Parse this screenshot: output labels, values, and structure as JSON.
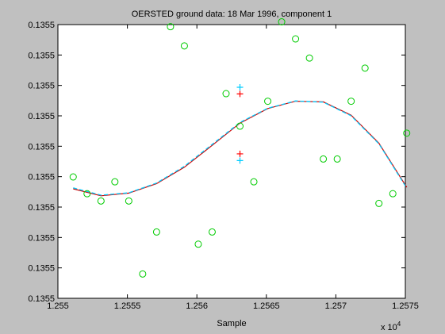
{
  "chart_data": {
    "type": "scatter",
    "title": "OERSTED ground data: 18 Mar 1996, component 1",
    "xlabel": "Sample",
    "ylabel": "",
    "x_multiplier_label": "x 10",
    "x_multiplier_exp": "4",
    "xlim": [
      1.255,
      1.2575
    ],
    "ylim": [
      0,
      9
    ],
    "x_ticks": [
      {
        "v": 1.255,
        "label": "1.255"
      },
      {
        "v": 1.2555,
        "label": "1.2555"
      },
      {
        "v": 1.256,
        "label": "1.256"
      },
      {
        "v": 1.2565,
        "label": "1.2565"
      },
      {
        "v": 1.257,
        "label": "1.257"
      },
      {
        "v": 1.2575,
        "label": "1.2575"
      }
    ],
    "y_ticks": [
      {
        "v": 9,
        "label": "0.1355"
      },
      {
        "v": 8,
        "label": "0.1355"
      },
      {
        "v": 7,
        "label": "0.1355"
      },
      {
        "v": 6,
        "label": "0.1355"
      },
      {
        "v": 5,
        "label": "0.1355"
      },
      {
        "v": 4,
        "label": "0.1355"
      },
      {
        "v": 3,
        "label": "0.1355"
      },
      {
        "v": 2,
        "label": "0.1355"
      },
      {
        "v": 1,
        "label": "0.1355"
      },
      {
        "v": 0,
        "label": "0.1355"
      }
    ],
    "grid": false,
    "series": [
      {
        "marker": "circle",
        "color": "#00cc00",
        "points": [
          [
            1.25511,
            3.99
          ],
          [
            1.25521,
            3.44
          ],
          [
            1.25531,
            3.2
          ],
          [
            1.25541,
            3.83
          ],
          [
            1.25551,
            3.2
          ],
          [
            1.25561,
            0.8
          ],
          [
            1.25571,
            2.18
          ],
          [
            1.25581,
            8.93
          ],
          [
            1.25591,
            8.3
          ],
          [
            1.25601,
            1.78
          ],
          [
            1.25611,
            2.18
          ],
          [
            1.25621,
            6.73
          ],
          [
            1.25631,
            5.66
          ],
          [
            1.25641,
            3.83
          ],
          [
            1.25651,
            6.48
          ],
          [
            1.25661,
            9.09
          ],
          [
            1.25671,
            8.53
          ],
          [
            1.25681,
            7.9
          ],
          [
            1.25691,
            4.58
          ],
          [
            1.25701,
            4.58
          ],
          [
            1.25711,
            6.48
          ],
          [
            1.25721,
            7.57
          ],
          [
            1.25731,
            3.12
          ],
          [
            1.25741,
            3.44
          ],
          [
            1.25751,
            5.43
          ]
        ]
      },
      {
        "marker": "plus",
        "color": "#ff0000",
        "points": [
          [
            1.25631,
            6.72
          ],
          [
            1.25631,
            4.75
          ]
        ]
      },
      {
        "marker": "plus",
        "color": "#00ccff",
        "points": [
          [
            1.25631,
            6.94
          ],
          [
            1.25631,
            4.53
          ]
        ]
      },
      {
        "marker": "line",
        "color": "#cc0000",
        "points": [
          [
            1.25511,
            3.6
          ],
          [
            1.25531,
            3.37
          ],
          [
            1.25551,
            3.46
          ],
          [
            1.25571,
            3.77
          ],
          [
            1.25591,
            4.31
          ],
          [
            1.25611,
            5.03
          ],
          [
            1.25631,
            5.76
          ],
          [
            1.25651,
            6.24
          ],
          [
            1.25671,
            6.48
          ],
          [
            1.25691,
            6.46
          ],
          [
            1.25711,
            6.02
          ],
          [
            1.25731,
            5.1
          ],
          [
            1.25751,
            3.65
          ]
        ]
      },
      {
        "marker": "dashline",
        "color": "#00ccff",
        "points": [
          [
            1.25511,
            3.63
          ],
          [
            1.25531,
            3.39
          ],
          [
            1.25551,
            3.47
          ],
          [
            1.25571,
            3.79
          ],
          [
            1.25591,
            4.34
          ],
          [
            1.25611,
            5.06
          ],
          [
            1.25631,
            5.78
          ],
          [
            1.25651,
            6.25
          ],
          [
            1.25671,
            6.49
          ],
          [
            1.25691,
            6.45
          ],
          [
            1.25711,
            6.0
          ],
          [
            1.25731,
            5.08
          ],
          [
            1.25751,
            3.62
          ]
        ]
      }
    ]
  }
}
